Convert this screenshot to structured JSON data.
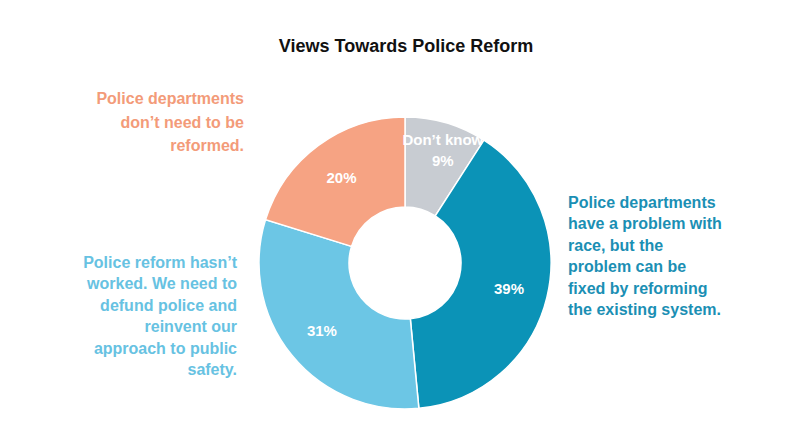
{
  "chart_data": {
    "type": "donut",
    "title": "Views Towards Police Reform",
    "categories": [
      "Don’t know",
      "Police departments\nhave a problem with\nrace, but the\nproblem can be\nfixed by reforming\nthe existing system.",
      "Police reform hasn’t\nworked. We need to\ndefund police and\nreinvent our\napproach to public\nsafety.",
      "Police departments\ndon’t need to be\nreformed."
    ],
    "values": [
      9,
      39,
      31,
      20
    ],
    "value_labels": [
      "9%",
      "39%",
      "31%",
      "20%"
    ],
    "colors": [
      "#c8ccd2",
      "#0b93b7",
      "#6cc6e5",
      "#f6a383"
    ],
    "data_labels": true
  }
}
